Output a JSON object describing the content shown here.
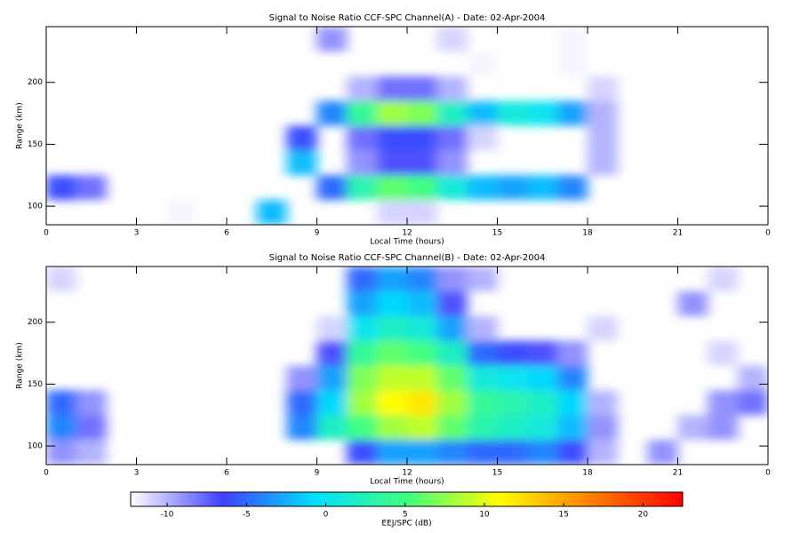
{
  "chart_data": [
    {
      "type": "heatmap",
      "title": "Signal to Noise Ratio CCF-SPC Channel(A) - Date: 02-Apr-2004",
      "xlabel": "Local Time (hours)",
      "ylabel": "Range (km)",
      "x_bins": [
        0,
        1,
        2,
        3,
        4,
        5,
        6,
        7,
        8,
        9,
        10,
        11,
        12,
        13,
        14,
        15,
        16,
        17,
        18,
        19,
        20,
        21,
        22,
        23,
        24
      ],
      "y_bins": [
        85,
        105,
        125,
        145,
        165,
        185,
        205,
        225,
        245
      ],
      "z": [
        [
          null,
          null,
          null,
          null,
          -12,
          null,
          null,
          -2,
          null,
          null,
          null,
          -11,
          -11,
          null,
          null,
          null,
          null,
          null,
          null,
          null,
          null,
          null,
          null,
          null
        ],
        [
          -6,
          -8,
          null,
          null,
          null,
          null,
          null,
          null,
          null,
          -5,
          3,
          6,
          5,
          1,
          -2,
          -3,
          -2,
          -4,
          null,
          null,
          null,
          null,
          null,
          null
        ],
        [
          null,
          null,
          null,
          null,
          null,
          null,
          null,
          null,
          -2,
          null,
          -9,
          -7,
          -7,
          -9,
          null,
          null,
          null,
          null,
          -10,
          null,
          null,
          null,
          null,
          null
        ],
        [
          null,
          null,
          null,
          null,
          null,
          null,
          null,
          null,
          -6,
          null,
          -8,
          -6,
          -6,
          -8,
          -11,
          null,
          null,
          null,
          -10,
          null,
          null,
          null,
          null,
          null
        ],
        [
          null,
          null,
          null,
          null,
          null,
          null,
          null,
          null,
          null,
          -4,
          4,
          8,
          7,
          2,
          -2,
          1,
          0,
          -3,
          -10,
          null,
          null,
          null,
          null,
          null
        ],
        [
          null,
          null,
          null,
          null,
          null,
          null,
          null,
          null,
          null,
          null,
          -10,
          -8,
          -8,
          -10,
          null,
          null,
          null,
          null,
          -11,
          null,
          null,
          null,
          null,
          null
        ],
        [
          null,
          null,
          null,
          null,
          null,
          null,
          null,
          null,
          null,
          null,
          null,
          null,
          null,
          null,
          -12,
          null,
          null,
          -12,
          null,
          null,
          null,
          null,
          null,
          null
        ],
        [
          null,
          null,
          null,
          null,
          null,
          null,
          null,
          null,
          null,
          -9,
          null,
          null,
          null,
          -11,
          null,
          null,
          null,
          -12,
          null,
          null,
          null,
          null,
          null,
          null
        ]
      ],
      "xlim": [
        0,
        24
      ],
      "ylim": [
        85,
        245
      ],
      "xticks": [
        0,
        3,
        6,
        9,
        12,
        15,
        18,
        21,
        {
          "value": 24,
          "label": "0"
        }
      ],
      "yticks": [
        100,
        150,
        200
      ]
    },
    {
      "type": "heatmap",
      "title": "Signal to Noise Ratio CCF-SPC Channel(B) - Date: 02-Apr-2004",
      "xlabel": "Local Time (hours)",
      "ylabel": "Range (km)",
      "x_bins": [
        0,
        1,
        2,
        3,
        4,
        5,
        6,
        7,
        8,
        9,
        10,
        11,
        12,
        13,
        14,
        15,
        16,
        17,
        18,
        19,
        20,
        21,
        22,
        23,
        24
      ],
      "y_bins": [
        85,
        105,
        125,
        145,
        165,
        185,
        205,
        225,
        245
      ],
      "z": [
        [
          -9,
          -10,
          null,
          null,
          null,
          null,
          null,
          null,
          null,
          null,
          -6,
          -3,
          -3,
          -4,
          -5,
          -5,
          -4,
          -6,
          -10,
          null,
          -9,
          null,
          null,
          null
        ],
        [
          -4,
          -8,
          null,
          null,
          null,
          null,
          null,
          null,
          -4,
          2,
          5,
          8,
          9,
          6,
          3,
          2,
          1,
          -2,
          -9,
          null,
          null,
          -10,
          -9,
          null
        ],
        [
          -5,
          -9,
          null,
          null,
          null,
          null,
          null,
          null,
          -5,
          -1,
          8,
          11,
          12,
          8,
          4,
          3,
          2,
          -1,
          -10,
          null,
          null,
          null,
          -9,
          -8
        ],
        [
          null,
          null,
          null,
          null,
          null,
          null,
          null,
          null,
          -9,
          -3,
          7,
          9,
          9,
          6,
          1,
          0,
          -1,
          -4,
          null,
          null,
          null,
          null,
          null,
          -10
        ],
        [
          null,
          null,
          null,
          null,
          null,
          null,
          null,
          null,
          null,
          -7,
          4,
          6,
          5,
          2,
          -5,
          -6,
          -7,
          -9,
          null,
          null,
          null,
          null,
          -11,
          null
        ],
        [
          null,
          null,
          null,
          null,
          null,
          null,
          null,
          null,
          null,
          -11,
          0,
          2,
          1,
          -3,
          -10,
          null,
          null,
          null,
          -11,
          null,
          null,
          null,
          null,
          null
        ],
        [
          null,
          null,
          null,
          null,
          null,
          null,
          null,
          null,
          null,
          null,
          -3,
          -1,
          -2,
          -7,
          null,
          null,
          null,
          null,
          null,
          null,
          null,
          -9,
          null,
          null
        ],
        [
          -11,
          null,
          null,
          null,
          null,
          null,
          null,
          null,
          null,
          null,
          -5,
          -3,
          -4,
          -9,
          -10,
          null,
          null,
          null,
          null,
          null,
          null,
          null,
          -11,
          null
        ]
      ],
      "xlim": [
        0,
        24
      ],
      "ylim": [
        85,
        245
      ],
      "xticks": [
        0,
        3,
        6,
        9,
        12,
        15,
        18,
        21,
        {
          "value": 24,
          "label": "0"
        }
      ],
      "yticks": [
        100,
        150,
        200
      ]
    }
  ],
  "colorbar": {
    "label": "EEJ/SPC (dB)",
    "zlim": [
      -12.3,
      22.5
    ],
    "ticks": [
      -10,
      -5,
      0,
      5,
      10,
      15,
      20
    ],
    "colormap": [
      "#ffffff",
      "#4040ff",
      "#00e0ff",
      "#40ff80",
      "#ffff00",
      "#ff8000",
      "#ff0000"
    ]
  }
}
